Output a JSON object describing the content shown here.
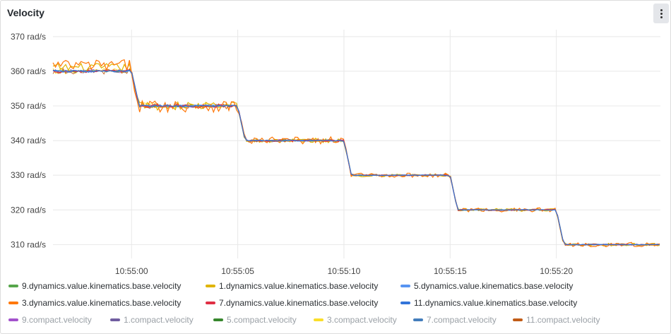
{
  "panel": {
    "title": "Velocity",
    "menu_icon": "vertical-ellipsis-icon"
  },
  "chart_data": {
    "type": "line",
    "title": "Velocity",
    "xlabel": "",
    "ylabel": "",
    "y_unit": "rad/s",
    "ylim": [
      306,
      372
    ],
    "xlim": [
      "10:54:56.3",
      "10:55:24.9"
    ],
    "y_ticks": [
      "310 rad/s",
      "320 rad/s",
      "330 rad/s",
      "340 rad/s",
      "350 rad/s",
      "360 rad/s",
      "370 rad/s"
    ],
    "y_tick_values": [
      310,
      320,
      330,
      340,
      350,
      360,
      370
    ],
    "x_ticks": [
      "10:55:00",
      "10:55:05",
      "10:55:10",
      "10:55:15",
      "10:55:20"
    ],
    "x_tick_values": [
      0,
      5,
      10,
      15,
      20
    ],
    "grid": true,
    "legend_position": "bottom",
    "setpoints": [
      {
        "from": "10:54:56",
        "to": "10:55:00",
        "value": 360
      },
      {
        "from": "10:55:00",
        "to": "10:55:05",
        "value": 350
      },
      {
        "from": "10:55:05",
        "to": "10:55:10",
        "value": 340
      },
      {
        "from": "10:55:10",
        "to": "10:55:15",
        "value": 330
      },
      {
        "from": "10:55:15",
        "to": "10:55:20",
        "value": 320
      },
      {
        "from": "10:55:20",
        "to": "10:55:25",
        "value": 310
      }
    ],
    "series": [
      {
        "name": "9.dynamics.value.kinematics.base.velocity",
        "color": "#56a64b",
        "dim": false,
        "noise": 0.25
      },
      {
        "name": "1.dynamics.value.kinematics.base.velocity",
        "color": "#e0b400",
        "dim": false,
        "noise": 1.2
      },
      {
        "name": "5.dynamics.value.kinematics.base.velocity",
        "color": "#5794f2",
        "dim": false,
        "noise": 0.3
      },
      {
        "name": "3.dynamics.value.kinematics.base.velocity",
        "color": "#ff780a",
        "dim": false,
        "noise": 1.8
      },
      {
        "name": "7.dynamics.value.kinematics.base.velocity",
        "color": "#e02f44",
        "dim": false,
        "noise": 0.4
      },
      {
        "name": "11.dynamics.value.kinematics.base.velocity",
        "color": "#3274d9",
        "dim": false,
        "noise": 0.3
      },
      {
        "name": "9.compact.velocity",
        "color": "#a352cc",
        "dim": true,
        "noise": 0.5
      },
      {
        "name": "1.compact.velocity",
        "color": "#705da0",
        "dim": true,
        "noise": 0.3
      },
      {
        "name": "5.compact.velocity",
        "color": "#37872d",
        "dim": true,
        "noise": 0.3
      },
      {
        "name": "3.compact.velocity",
        "color": "#fade2a",
        "dim": true,
        "noise": 0.9
      },
      {
        "name": "7.compact.velocity",
        "color": "#447ebc",
        "dim": true,
        "noise": 0.3
      },
      {
        "name": "11.compact.velocity",
        "color": "#c15c17",
        "dim": true,
        "noise": 0.8
      }
    ]
  }
}
